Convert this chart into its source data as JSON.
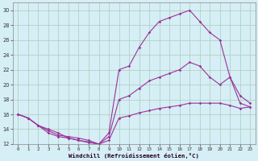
{
  "xlabel": "Windchill (Refroidissement éolien,°C)",
  "xlim": [
    -0.5,
    23.5
  ],
  "ylim": [
    12,
    31
  ],
  "yticks": [
    12,
    14,
    16,
    18,
    20,
    22,
    24,
    26,
    28,
    30
  ],
  "xticks": [
    0,
    1,
    2,
    3,
    4,
    5,
    6,
    7,
    8,
    9,
    10,
    11,
    12,
    13,
    14,
    15,
    16,
    17,
    18,
    19,
    20,
    21,
    22,
    23
  ],
  "background_color": "#d6eef5",
  "grid_color": "#aaccbb",
  "line_color": "#993399",
  "line1_x": [
    0,
    1,
    2,
    3,
    4,
    5,
    6,
    7,
    8,
    9,
    10,
    11,
    12,
    13,
    14,
    15,
    16,
    17,
    18,
    19,
    20,
    21,
    22,
    23
  ],
  "line1_y": [
    16.0,
    15.5,
    14.5,
    14.0,
    13.5,
    12.8,
    12.5,
    12.3,
    12.0,
    13.5,
    22.0,
    22.5,
    25.0,
    27.0,
    28.5,
    29.0,
    29.5,
    30.0,
    28.5,
    27.0,
    26.0,
    21.0,
    18.5,
    17.5
  ],
  "line2_x": [
    0,
    1,
    2,
    3,
    4,
    5,
    6,
    7,
    8,
    9,
    10,
    11,
    12,
    13,
    14,
    15,
    16,
    17,
    18,
    19,
    20,
    21,
    22,
    23
  ],
  "line2_y": [
    16.0,
    15.5,
    14.5,
    13.8,
    13.2,
    13.0,
    12.8,
    12.5,
    12.0,
    13.0,
    18.0,
    18.5,
    19.5,
    20.5,
    21.0,
    21.5,
    22.0,
    23.0,
    22.5,
    21.0,
    20.0,
    21.0,
    17.5,
    17.0
  ],
  "line3_x": [
    0,
    1,
    2,
    3,
    4,
    5,
    6,
    7,
    8,
    9,
    10,
    11,
    12,
    13,
    14,
    15,
    16,
    17,
    18,
    19,
    20,
    21,
    22,
    23
  ],
  "line3_y": [
    16.0,
    15.5,
    14.5,
    13.5,
    13.0,
    12.8,
    12.5,
    12.2,
    12.0,
    12.5,
    15.5,
    15.8,
    16.2,
    16.5,
    16.8,
    17.0,
    17.2,
    17.5,
    17.5,
    17.5,
    17.5,
    17.2,
    16.8,
    17.0
  ]
}
